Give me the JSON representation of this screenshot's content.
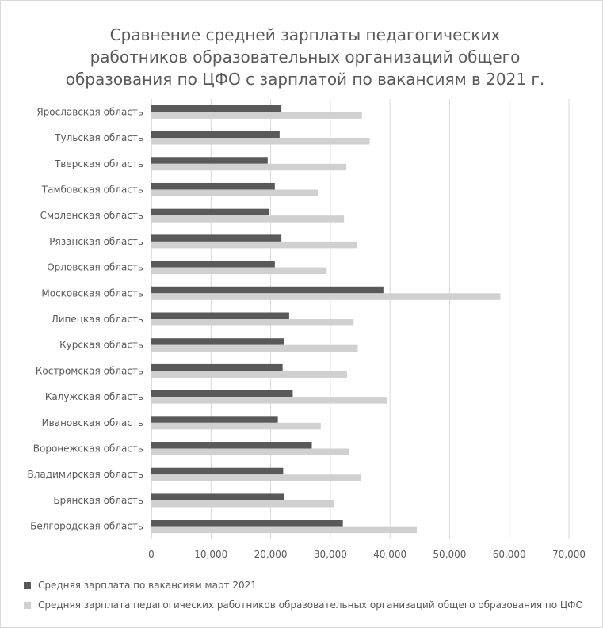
{
  "chart_data": {
    "type": "bar",
    "orientation": "horizontal",
    "title": "Сравнение средней зарплаты  педагогических работников образовательных организаций общего образования по ЦФО с зарплатой по вакансиям в 2021 г.",
    "title_lines": [
      "Сравнение средней зарплаты  педагогических",
      "работников образовательных организаций общего",
      "образования по ЦФО с зарплатой по вакансиям в 2021 г."
    ],
    "categories": [
      "Ярославская область",
      "Тульская область",
      "Тверская область",
      "Тамбовская область",
      "Смоленская область",
      "Рязанская область",
      "Орловская область",
      "Московская область",
      "Липецкая область",
      "Курская область",
      "Костромская область",
      "Калужская область",
      "Ивановская область",
      "Воронежская область",
      "Владимирская область",
      "Брянская область",
      "Белгородская область"
    ],
    "series": [
      {
        "name": "Средняя зарплата по вакансиям март 2021",
        "color": "#595959",
        "values": [
          21800,
          21500,
          19500,
          20700,
          19700,
          21800,
          20700,
          38900,
          23100,
          22300,
          22000,
          23700,
          21200,
          26900,
          22100,
          22300,
          32100
        ]
      },
      {
        "name": "Средняя зарплата педагогических работников образовательных организаций общего образования по ЦФО",
        "color": "#d0d0d0",
        "values": [
          35300,
          36600,
          32700,
          27900,
          32300,
          34400,
          29400,
          58500,
          33900,
          34600,
          32800,
          39600,
          28400,
          33100,
          35100,
          30600,
          44500
        ]
      }
    ],
    "xlim": [
      0,
      70000
    ],
    "x_ticks": [
      "0",
      "10,000",
      "20,000",
      "30,000",
      "40,000",
      "50,000",
      "60,000",
      "70,000"
    ],
    "x_tick_values": [
      0,
      10000,
      20000,
      30000,
      40000,
      50000,
      60000,
      70000
    ],
    "grid": true,
    "legend_position": "bottom"
  }
}
